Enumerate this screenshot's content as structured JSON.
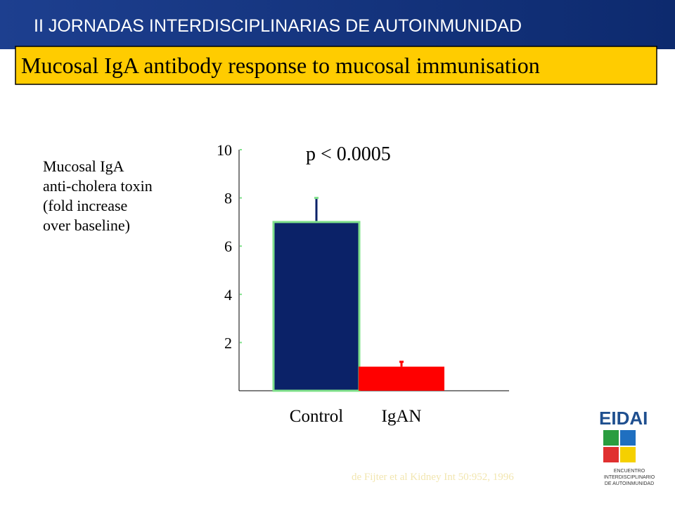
{
  "header": {
    "title": "II JORNADAS INTERDISCIPLINARIAS DE AUTOINMUNIDAD"
  },
  "slide_title": "Mucosal IgA antibody response to mucosal immunisation",
  "chart_data": {
    "type": "bar",
    "ylabel": [
      "Mucosal IgA",
      "anti-cholera toxin",
      "(fold increase",
      "over baseline)"
    ],
    "annotation": "p < 0.0005",
    "categories": [
      "Control",
      "IgAN"
    ],
    "values": [
      7,
      1
    ],
    "errors": [
      1,
      0.2
    ],
    "colors": [
      "#0b2268",
      "#ff0000"
    ],
    "ylim": [
      0,
      10
    ],
    "yticks": [
      2,
      4,
      6,
      8,
      10
    ]
  },
  "citation": "de Fijter et al Kidney Int 50:952, 1996",
  "logo": {
    "name": "EIDAI",
    "subtitle": [
      "ENCUENTRO",
      "INTERDISCIPLINARIO",
      "DE AUTOINMUNIDAD"
    ]
  }
}
